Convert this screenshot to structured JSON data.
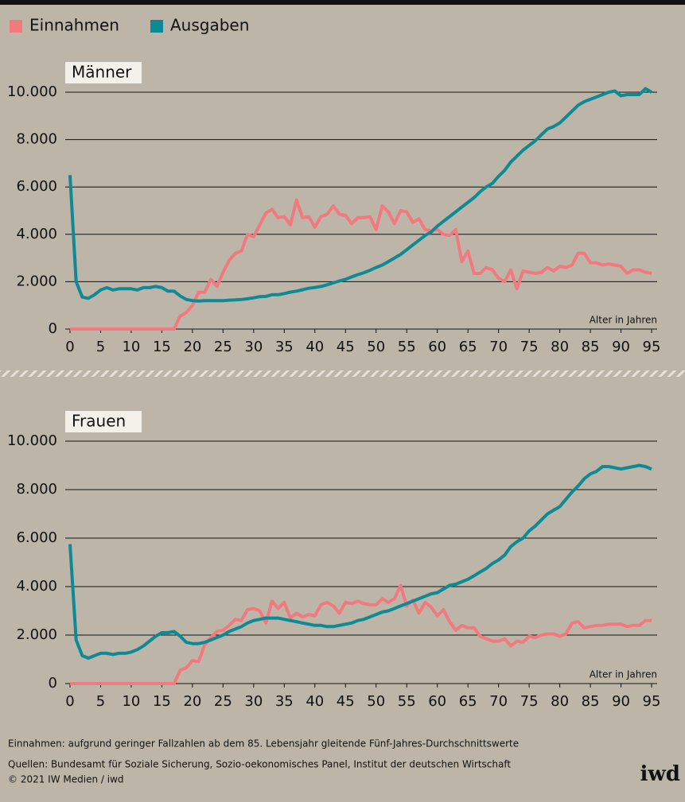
{
  "chart_data": [
    {
      "type": "line",
      "title": "Männer",
      "x_label": "Alter in Jahren",
      "x": [
        0,
        1,
        2,
        3,
        4,
        5,
        6,
        7,
        8,
        9,
        10,
        11,
        12,
        13,
        14,
        15,
        16,
        17,
        18,
        19,
        20,
        21,
        22,
        23,
        24,
        25,
        26,
        27,
        28,
        29,
        30,
        31,
        32,
        33,
        34,
        35,
        36,
        37,
        38,
        39,
        40,
        41,
        42,
        43,
        44,
        45,
        46,
        47,
        48,
        49,
        50,
        51,
        52,
        53,
        54,
        55,
        56,
        57,
        58,
        59,
        60,
        61,
        62,
        63,
        64,
        65,
        66,
        67,
        68,
        69,
        70,
        71,
        72,
        73,
        74,
        75,
        76,
        77,
        78,
        79,
        80,
        81,
        82,
        83,
        84,
        85,
        86,
        87,
        88,
        89,
        90,
        91,
        92,
        93,
        94,
        95
      ],
      "series": [
        {
          "name": "Einnahmen",
          "color": "#f07a80",
          "values": [
            0,
            0,
            0,
            0,
            0,
            0,
            0,
            0,
            0,
            0,
            0,
            0,
            0,
            0,
            0,
            0,
            0,
            0,
            550,
            700,
            1000,
            1550,
            1550,
            2100,
            1800,
            2400,
            2900,
            3200,
            3300,
            4000,
            3900,
            4400,
            4900,
            5050,
            4700,
            4750,
            4400,
            5450,
            4700,
            4750,
            4300,
            4750,
            4850,
            5200,
            4850,
            4800,
            4450,
            4700,
            4700,
            4750,
            4200,
            5200,
            4950,
            4450,
            5000,
            4950,
            4500,
            4650,
            4200,
            4150,
            4200,
            4000,
            3950,
            4200,
            2850,
            3300,
            2350,
            2350,
            2600,
            2500,
            2150,
            2000,
            2500,
            1700,
            2450,
            2400,
            2350,
            2400,
            2600,
            2450,
            2650,
            2600,
            2700,
            3200,
            3200,
            2800,
            2800,
            2700,
            2750,
            2700,
            2650,
            2350,
            2500,
            2500,
            2400,
            2350
          ]
        },
        {
          "name": "Ausgaben",
          "color": "#0e8a96",
          "values": [
            6500,
            2000,
            1350,
            1300,
            1450,
            1650,
            1750,
            1650,
            1700,
            1700,
            1700,
            1650,
            1750,
            1750,
            1800,
            1750,
            1600,
            1600,
            1400,
            1250,
            1200,
            1180,
            1200,
            1200,
            1200,
            1200,
            1220,
            1230,
            1250,
            1280,
            1320,
            1370,
            1380,
            1450,
            1450,
            1500,
            1560,
            1600,
            1660,
            1720,
            1760,
            1800,
            1870,
            1950,
            2030,
            2100,
            2200,
            2300,
            2380,
            2480,
            2600,
            2700,
            2850,
            3000,
            3150,
            3350,
            3550,
            3750,
            3950,
            4100,
            4350,
            4550,
            4750,
            4950,
            5150,
            5350,
            5550,
            5800,
            6000,
            6150,
            6450,
            6700,
            7050,
            7300,
            7550,
            7750,
            7950,
            8200,
            8450,
            8550,
            8700,
            8950,
            9200,
            9450,
            9600,
            9700,
            9800,
            9900,
            10000,
            10050,
            9850,
            9900,
            9900,
            9900,
            10150,
            10000
          ]
        }
      ],
      "xlim": [
        0,
        95
      ],
      "xticks": [
        0,
        5,
        10,
        15,
        20,
        25,
        30,
        35,
        40,
        45,
        50,
        55,
        60,
        65,
        70,
        75,
        80,
        85,
        90,
        95
      ],
      "ylim": [
        0,
        10000
      ],
      "yticks": [
        0,
        {
          "value": 2000,
          "label": "2.000"
        },
        {
          "value": 4000,
          "label": "4.000"
        },
        {
          "value": 6000,
          "label": "6.000"
        },
        {
          "value": 8000,
          "label": "8.000"
        },
        {
          "value": 10000,
          "label": "10.000"
        }
      ],
      "grid": true
    },
    {
      "type": "line",
      "title": "Frauen",
      "x_label": "Alter in Jahren",
      "x": [
        0,
        1,
        2,
        3,
        4,
        5,
        6,
        7,
        8,
        9,
        10,
        11,
        12,
        13,
        14,
        15,
        16,
        17,
        18,
        19,
        20,
        21,
        22,
        23,
        24,
        25,
        26,
        27,
        28,
        29,
        30,
        31,
        32,
        33,
        34,
        35,
        36,
        37,
        38,
        39,
        40,
        41,
        42,
        43,
        44,
        45,
        46,
        47,
        48,
        49,
        50,
        51,
        52,
        53,
        54,
        55,
        56,
        57,
        58,
        59,
        60,
        61,
        62,
        63,
        64,
        65,
        66,
        67,
        68,
        69,
        70,
        71,
        72,
        73,
        74,
        75,
        76,
        77,
        78,
        79,
        80,
        81,
        82,
        83,
        84,
        85,
        86,
        87,
        88,
        89,
        90,
        91,
        92,
        93,
        94,
        95
      ],
      "series": [
        {
          "name": "Einnahmen",
          "color": "#f07a80",
          "values": [
            0,
            0,
            0,
            0,
            0,
            0,
            0,
            0,
            0,
            0,
            0,
            0,
            0,
            0,
            0,
            0,
            0,
            0,
            550,
            650,
            950,
            900,
            1600,
            1900,
            2150,
            2200,
            2400,
            2650,
            2600,
            3050,
            3100,
            3000,
            2500,
            3400,
            3100,
            3350,
            2700,
            2900,
            2750,
            2850,
            2800,
            3250,
            3350,
            3200,
            2900,
            3350,
            3300,
            3400,
            3300,
            3250,
            3250,
            3500,
            3350,
            3500,
            4050,
            3200,
            3450,
            2900,
            3350,
            3150,
            2800,
            3050,
            2550,
            2200,
            2400,
            2300,
            2300,
            1950,
            1850,
            1750,
            1750,
            1850,
            1550,
            1750,
            1700,
            1950,
            1900,
            2000,
            2050,
            2050,
            1950,
            2050,
            2500,
            2550,
            2300,
            2350,
            2400,
            2400,
            2450,
            2450,
            2450,
            2350,
            2400,
            2400,
            2600,
            2600
          ]
        },
        {
          "name": "Ausgaben",
          "color": "#0e8a96",
          "values": [
            5750,
            1800,
            1150,
            1050,
            1150,
            1250,
            1250,
            1200,
            1250,
            1250,
            1300,
            1400,
            1550,
            1750,
            1950,
            2100,
            2100,
            2150,
            1950,
            1700,
            1650,
            1650,
            1700,
            1800,
            1900,
            2000,
            2150,
            2250,
            2350,
            2500,
            2600,
            2650,
            2700,
            2700,
            2700,
            2650,
            2600,
            2550,
            2500,
            2450,
            2400,
            2400,
            2350,
            2350,
            2400,
            2450,
            2500,
            2600,
            2650,
            2750,
            2850,
            2950,
            3000,
            3100,
            3200,
            3300,
            3400,
            3500,
            3600,
            3700,
            3750,
            3900,
            4050,
            4100,
            4200,
            4300,
            4450,
            4600,
            4750,
            4950,
            5100,
            5300,
            5650,
            5850,
            6000,
            6300,
            6500,
            6750,
            7000,
            7150,
            7300,
            7600,
            7900,
            8150,
            8450,
            8650,
            8750,
            8950,
            8950,
            8900,
            8850,
            8900,
            8950,
            9000,
            8950,
            8850
          ]
        }
      ],
      "xlim": [
        0,
        95
      ],
      "xticks": [
        0,
        5,
        10,
        15,
        20,
        25,
        30,
        35,
        40,
        45,
        50,
        55,
        60,
        65,
        70,
        75,
        80,
        85,
        90,
        95
      ],
      "ylim": [
        0,
        10000
      ],
      "yticks": [
        0,
        {
          "value": 2000,
          "label": "2.000"
        },
        {
          "value": 4000,
          "label": "4.000"
        },
        {
          "value": 6000,
          "label": "6.000"
        },
        {
          "value": 8000,
          "label": "8.000"
        },
        {
          "value": 10000,
          "label": "10.000"
        }
      ],
      "grid": true
    }
  ],
  "note": "Einnahmen: aufgrund geringer Fallzahlen ab dem 85. Lebensjahr gleitende Fünf-Jahres-Durchschnittswerte",
  "source": "Quellen: Bundesamt für Soziale Sicherung, Sozio-oekonomisches Panel, Institut der deutschen Wirtschaft",
  "copyright": "© 2021 IW Medien / iwd",
  "logo": "iwd"
}
